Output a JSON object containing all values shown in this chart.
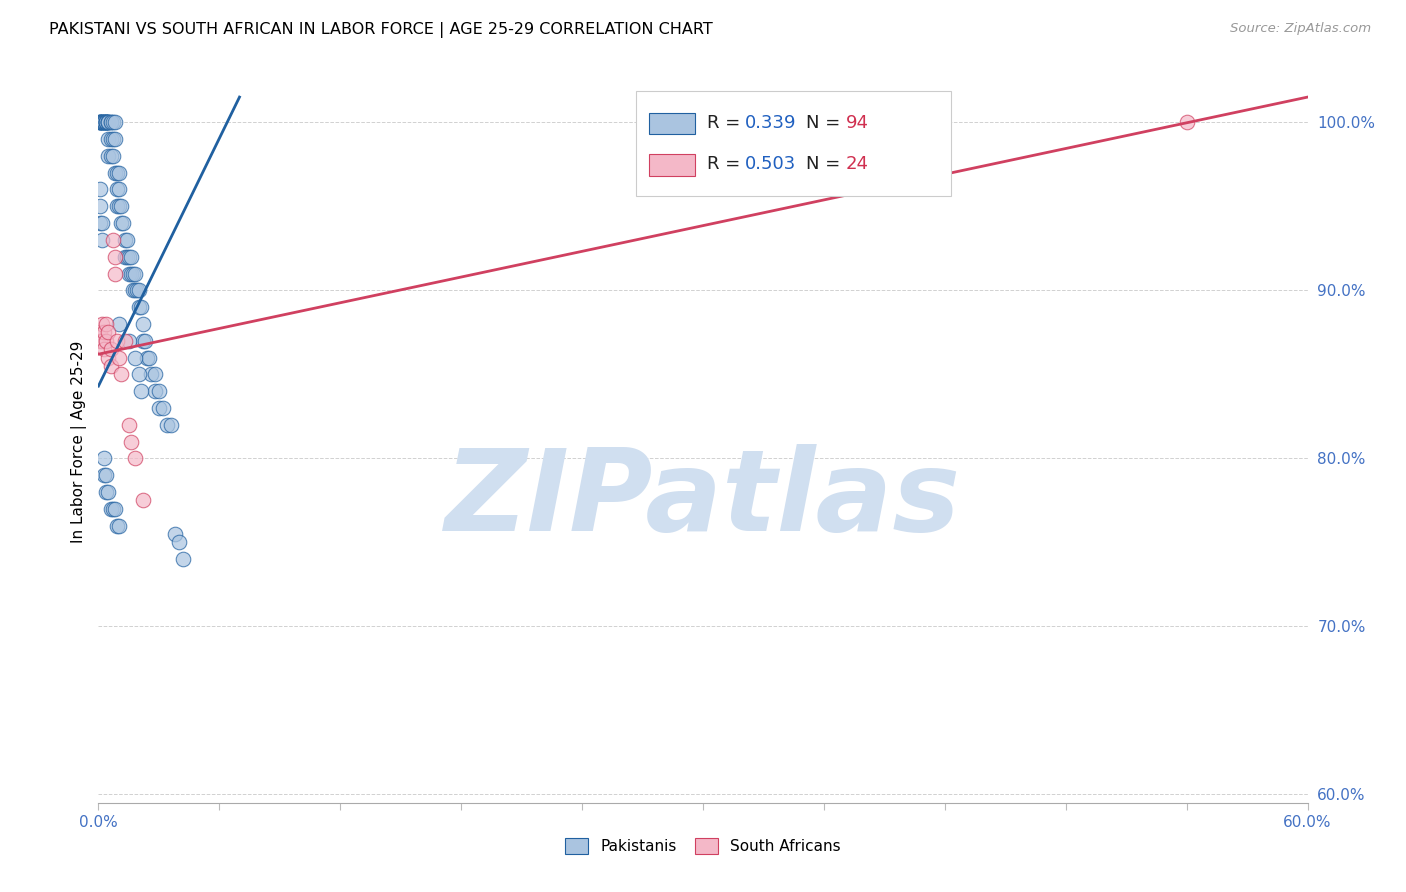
{
  "title": "PAKISTANI VS SOUTH AFRICAN IN LABOR FORCE | AGE 25-29 CORRELATION CHART",
  "source": "Source: ZipAtlas.com",
  "ylabel": "In Labor Force | Age 25-29",
  "xlim": [
    0.0,
    0.6
  ],
  "ylim": [
    0.595,
    1.025
  ],
  "yticks": [
    0.6,
    0.7,
    0.8,
    0.9,
    1.0
  ],
  "ytick_labels": [
    "60.0%",
    "70.0%",
    "80.0%",
    "90.0%",
    "100.0%"
  ],
  "xticks": [
    0.0,
    0.06,
    0.12,
    0.18,
    0.24,
    0.3,
    0.36,
    0.42,
    0.48,
    0.54,
    0.6
  ],
  "xtick_labels": [
    "0.0%",
    "",
    "",
    "",
    "",
    "",
    "",
    "",
    "",
    "",
    "60.0%"
  ],
  "legend_labels": [
    "Pakistanis",
    "South Africans"
  ],
  "blue_color": "#aac4e0",
  "pink_color": "#f4b8c8",
  "trend_blue": "#2060a0",
  "trend_pink": "#d04060",
  "watermark_text": "ZIPatlas",
  "watermark_color": "#d0dff0",
  "blue_scatter_x": [
    0.001,
    0.001,
    0.001,
    0.001,
    0.001,
    0.002,
    0.002,
    0.002,
    0.002,
    0.003,
    0.003,
    0.003,
    0.003,
    0.004,
    0.004,
    0.004,
    0.004,
    0.004,
    0.005,
    0.005,
    0.005,
    0.005,
    0.005,
    0.005,
    0.006,
    0.006,
    0.006,
    0.006,
    0.007,
    0.007,
    0.007,
    0.008,
    0.008,
    0.008,
    0.009,
    0.009,
    0.009,
    0.01,
    0.01,
    0.01,
    0.011,
    0.011,
    0.012,
    0.013,
    0.013,
    0.014,
    0.014,
    0.015,
    0.015,
    0.016,
    0.016,
    0.017,
    0.017,
    0.018,
    0.018,
    0.019,
    0.02,
    0.02,
    0.021,
    0.022,
    0.022,
    0.023,
    0.024,
    0.025,
    0.026,
    0.028,
    0.028,
    0.03,
    0.03,
    0.032,
    0.034,
    0.036,
    0.01,
    0.015,
    0.018,
    0.02,
    0.021,
    0.001,
    0.001,
    0.001,
    0.002,
    0.002,
    0.003,
    0.003,
    0.004,
    0.004,
    0.005,
    0.006,
    0.007,
    0.008,
    0.009,
    0.01,
    0.038,
    0.04,
    0.042
  ],
  "blue_scatter_y": [
    1.0,
    1.0,
    1.0,
    1.0,
    1.0,
    1.0,
    1.0,
    1.0,
    1.0,
    1.0,
    1.0,
    1.0,
    1.0,
    1.0,
    1.0,
    1.0,
    1.0,
    1.0,
    1.0,
    1.0,
    1.0,
    1.0,
    0.99,
    0.98,
    1.0,
    1.0,
    0.99,
    0.98,
    1.0,
    0.99,
    0.98,
    1.0,
    0.99,
    0.97,
    0.97,
    0.96,
    0.95,
    0.97,
    0.96,
    0.95,
    0.95,
    0.94,
    0.94,
    0.93,
    0.92,
    0.93,
    0.92,
    0.92,
    0.91,
    0.92,
    0.91,
    0.91,
    0.9,
    0.91,
    0.9,
    0.9,
    0.9,
    0.89,
    0.89,
    0.88,
    0.87,
    0.87,
    0.86,
    0.86,
    0.85,
    0.85,
    0.84,
    0.84,
    0.83,
    0.83,
    0.82,
    0.82,
    0.88,
    0.87,
    0.86,
    0.85,
    0.84,
    0.96,
    0.95,
    0.94,
    0.94,
    0.93,
    0.8,
    0.79,
    0.79,
    0.78,
    0.78,
    0.77,
    0.77,
    0.77,
    0.76,
    0.76,
    0.755,
    0.75,
    0.74
  ],
  "pink_scatter_x": [
    0.001,
    0.001,
    0.002,
    0.002,
    0.003,
    0.003,
    0.004,
    0.004,
    0.005,
    0.005,
    0.006,
    0.006,
    0.007,
    0.008,
    0.008,
    0.009,
    0.01,
    0.011,
    0.013,
    0.015,
    0.016,
    0.018,
    0.022,
    0.54
  ],
  "pink_scatter_y": [
    0.875,
    0.87,
    0.88,
    0.87,
    0.875,
    0.865,
    0.88,
    0.87,
    0.875,
    0.86,
    0.865,
    0.855,
    0.93,
    0.92,
    0.91,
    0.87,
    0.86,
    0.85,
    0.87,
    0.82,
    0.81,
    0.8,
    0.775,
    1.0
  ],
  "blue_trend_x": [
    0.0,
    0.07
  ],
  "blue_trend_y": [
    0.843,
    1.015
  ],
  "pink_trend_x": [
    0.0,
    0.6
  ],
  "pink_trend_y": [
    0.862,
    1.015
  ]
}
